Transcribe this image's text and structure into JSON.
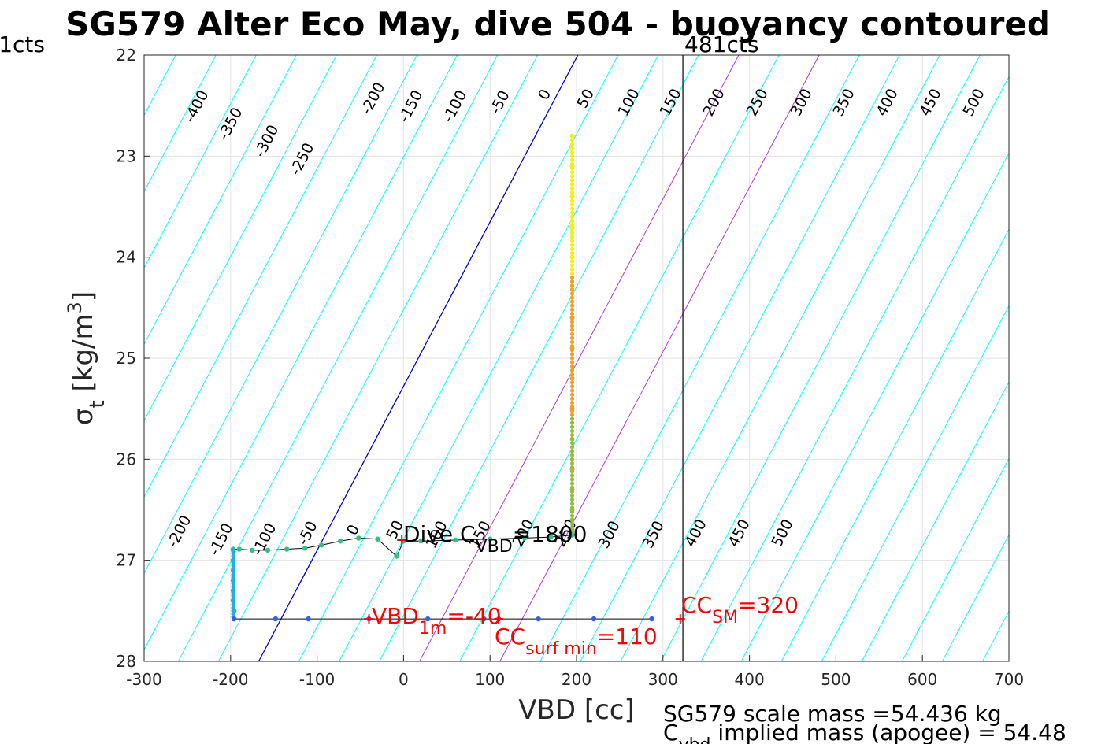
{
  "chart_data": {
    "type": "scatter",
    "title": "SG579 Alter Eco May, dive 504 - buoyancy contoured",
    "xlabel": "VBD [cc]",
    "ylabel_main": "σ",
    "ylabel_sub": "t",
    "ylabel_rest": " [kg/m",
    "ylabel_sup": "3",
    "ylabel_end": "]",
    "xlim": [
      -300,
      700
    ],
    "ylim": [
      22,
      28
    ],
    "y_reversed": true,
    "grid": true,
    "xticks": [
      "-300",
      "-200",
      "-100",
      "0",
      "100",
      "200",
      "300",
      "400",
      "500",
      "600",
      "700"
    ],
    "yticks": [
      "22",
      "23",
      "24",
      "25",
      "26",
      "27",
      "28"
    ],
    "colors": {
      "contour": "#00ffff",
      "zero_contour": "#0000cc",
      "reference_contour": "#b233e0",
      "dive_points_top": "#f0f020",
      "dive_points_mid": "#f0a030",
      "dive_points_deep": "#30c080",
      "climb_points": "#3060f0",
      "annotation": "#ff0000"
    },
    "contour_labels_top": [
      "-400",
      "-350",
      "-300",
      "-250",
      "-200",
      "-150",
      "-100",
      "-50",
      "0",
      "50",
      "100",
      "150",
      "200",
      "250",
      "300",
      "350",
      "400",
      "450",
      "500"
    ],
    "contour_labels_bottom": [
      "-200",
      "-150",
      "-100",
      "-50",
      "0",
      "50",
      "100",
      "150",
      "200",
      "250",
      "300",
      "350",
      "400",
      "450",
      "500"
    ],
    "vertical_lines": [
      {
        "label": "1cts",
        "x": -300
      },
      {
        "label": "481cts",
        "x": 323
      }
    ],
    "reference_contours_vbd_at_27": [
      -106,
      80,
      176
    ],
    "series": [
      {
        "x": [
          195,
          195,
          195,
          195,
          195,
          195,
          195,
          195,
          195,
          195,
          195,
          195,
          195,
          195,
          195,
          195,
          195
        ],
        "y": [
          22.8,
          23.1,
          23.4,
          23.7,
          24.0,
          24.3,
          24.6,
          24.9,
          25.2,
          25.5,
          25.8,
          26.1,
          26.3,
          26.5,
          26.6,
          26.7,
          26.75
        ]
      },
      {
        "x": [
          195,
          170,
          140,
          100,
          60,
          20,
          0,
          -8,
          -30,
          -52,
          -73,
          -95,
          -114,
          -135,
          -157,
          -175,
          -190,
          -197
        ],
        "y": [
          26.75,
          26.77,
          26.78,
          26.79,
          26.8,
          26.81,
          26.81,
          26.96,
          26.79,
          26.78,
          26.81,
          26.85,
          26.88,
          26.89,
          26.9,
          26.9,
          26.89,
          26.89
        ]
      },
      {
        "x": [
          -197,
          -197,
          -197,
          -197,
          -197,
          -197,
          -196,
          -196
        ],
        "y": [
          26.9,
          27.0,
          27.1,
          27.2,
          27.3,
          27.4,
          27.5,
          27.58
        ]
      },
      {
        "x": [
          -196,
          -148,
          -110,
          -40,
          28,
          93,
          110,
          156,
          220,
          287
        ],
        "y": [
          27.58,
          27.58,
          27.58,
          27.58,
          27.58,
          27.58,
          27.58,
          27.58,
          27.58,
          27.58
        ]
      }
    ],
    "markers": [
      {
        "label": "Dive C_VBD",
        "x": -2,
        "y": 26.8
      },
      {
        "label": "VBD_1m",
        "x": -40,
        "y": 27.58
      },
      {
        "label": "CC_surf min",
        "x": 110,
        "y": 27.58
      },
      {
        "label": "CC_SM",
        "x": 320,
        "y": 27.58
      }
    ]
  },
  "annotations": {
    "dive_cvbd": {
      "main": "Dive C",
      "sub": "VBD",
      "value": "=1800"
    },
    "vbd_1m": {
      "main": "VBD",
      "sub": "1m",
      "value": "=-40"
    },
    "cc_surf_min": {
      "main": "CC",
      "sub": "surf min",
      "value": "=110"
    },
    "cc_sm": {
      "main": "CC",
      "sub": "SM",
      "value": "=320"
    }
  },
  "footer": {
    "line1": "SG579 scale mass =54.436 kg",
    "line2_main": "C",
    "line2_sub": "vbd",
    "line2_rest": " implied mass (apogee) = 54.48"
  }
}
